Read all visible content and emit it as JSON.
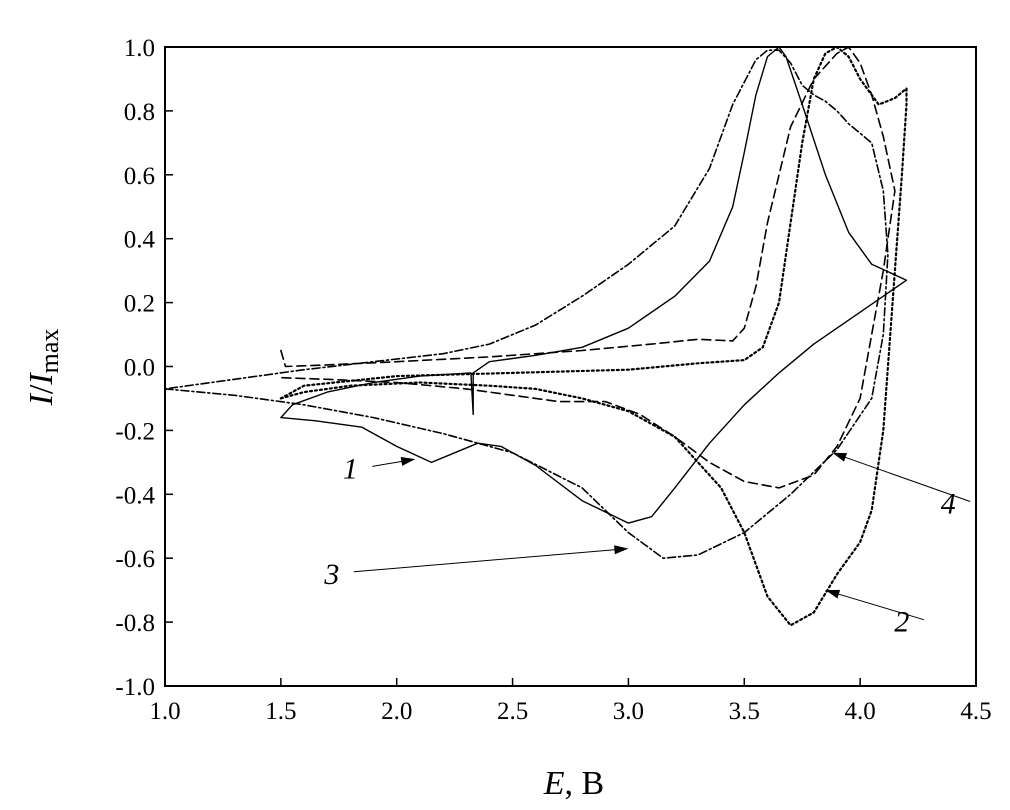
{
  "chart_data": {
    "type": "line",
    "xlabel": {
      "var": "E",
      "unit": ", B"
    },
    "ylabel": {
      "var1": "I",
      "slash": "/",
      "var2": "I",
      "sub": "max"
    },
    "xlim": [
      1.0,
      4.5
    ],
    "ylim": [
      -1.0,
      1.0
    ],
    "x_ticks": [
      "1.0",
      "1.5",
      "2.0",
      "2.5",
      "3.0",
      "3.5",
      "4.0",
      "4.5"
    ],
    "y_ticks": [
      "-1.0",
      "-0.8",
      "-0.6",
      "-0.4",
      "-0.2",
      "0.0",
      "0.2",
      "0.4",
      "0.6",
      "0.8",
      "1.0"
    ],
    "grid": false,
    "legend": "none",
    "series": [
      {
        "name": "1",
        "style": "solid",
        "points": [
          [
            1.5,
            -0.16
          ],
          [
            1.65,
            -0.17
          ],
          [
            1.85,
            -0.19
          ],
          [
            2.0,
            -0.25
          ],
          [
            2.15,
            -0.3
          ],
          [
            2.25,
            -0.27
          ],
          [
            2.35,
            -0.24
          ],
          [
            2.45,
            -0.25
          ],
          [
            2.6,
            -0.31
          ],
          [
            2.8,
            -0.42
          ],
          [
            3.0,
            -0.49
          ],
          [
            3.1,
            -0.47
          ],
          [
            3.2,
            -0.38
          ],
          [
            3.35,
            -0.24
          ],
          [
            3.5,
            -0.12
          ],
          [
            3.65,
            -0.02
          ],
          [
            3.8,
            0.07
          ],
          [
            4.0,
            0.17
          ],
          [
            4.2,
            0.27
          ],
          [
            4.05,
            0.32
          ],
          [
            3.95,
            0.42
          ],
          [
            3.85,
            0.6
          ],
          [
            3.75,
            0.82
          ],
          [
            3.68,
            0.97
          ],
          [
            3.65,
            1.0
          ],
          [
            3.6,
            0.97
          ],
          [
            3.55,
            0.85
          ],
          [
            3.5,
            0.67
          ],
          [
            3.45,
            0.5
          ],
          [
            3.35,
            0.33
          ],
          [
            3.2,
            0.22
          ],
          [
            3.0,
            0.12
          ],
          [
            2.8,
            0.06
          ],
          [
            2.6,
            0.035
          ],
          [
            2.45,
            0.02
          ],
          [
            2.4,
            0.015
          ],
          [
            2.33,
            -0.02
          ],
          [
            2.33,
            -0.15
          ],
          [
            2.32,
            -0.02
          ],
          [
            2.1,
            -0.03
          ],
          [
            1.9,
            -0.05
          ],
          [
            1.7,
            -0.08
          ],
          [
            1.55,
            -0.12
          ],
          [
            1.5,
            -0.16
          ]
        ]
      },
      {
        "name": "2",
        "style": "dotted",
        "points": [
          [
            1.5,
            -0.1
          ],
          [
            1.6,
            -0.08
          ],
          [
            1.8,
            -0.06
          ],
          [
            2.1,
            -0.05
          ],
          [
            2.4,
            -0.06
          ],
          [
            2.6,
            -0.07
          ],
          [
            2.8,
            -0.1
          ],
          [
            3.0,
            -0.14
          ],
          [
            3.2,
            -0.22
          ],
          [
            3.4,
            -0.38
          ],
          [
            3.5,
            -0.52
          ],
          [
            3.6,
            -0.72
          ],
          [
            3.7,
            -0.81
          ],
          [
            3.8,
            -0.77
          ],
          [
            3.9,
            -0.65
          ],
          [
            4.0,
            -0.55
          ],
          [
            4.05,
            -0.45
          ],
          [
            4.1,
            -0.2
          ],
          [
            4.15,
            0.3
          ],
          [
            4.18,
            0.6
          ],
          [
            4.2,
            0.82
          ],
          [
            4.2,
            0.87
          ],
          [
            4.15,
            0.84
          ],
          [
            4.08,
            0.82
          ],
          [
            4.0,
            0.9
          ],
          [
            3.95,
            0.97
          ],
          [
            3.9,
            1.0
          ],
          [
            3.85,
            0.98
          ],
          [
            3.8,
            0.9
          ],
          [
            3.75,
            0.7
          ],
          [
            3.7,
            0.45
          ],
          [
            3.65,
            0.2
          ],
          [
            3.58,
            0.06
          ],
          [
            3.5,
            0.02
          ],
          [
            3.3,
            0.01
          ],
          [
            3.0,
            -0.01
          ],
          [
            2.5,
            -0.02
          ],
          [
            2.0,
            -0.03
          ],
          [
            1.6,
            -0.06
          ],
          [
            1.5,
            -0.1
          ]
        ]
      },
      {
        "name": "3",
        "style": "dash-dot",
        "points": [
          [
            1.0,
            -0.07
          ],
          [
            1.3,
            -0.09
          ],
          [
            1.6,
            -0.12
          ],
          [
            1.9,
            -0.16
          ],
          [
            2.2,
            -0.21
          ],
          [
            2.5,
            -0.27
          ],
          [
            2.8,
            -0.38
          ],
          [
            3.0,
            -0.52
          ],
          [
            3.15,
            -0.6
          ],
          [
            3.3,
            -0.59
          ],
          [
            3.5,
            -0.52
          ],
          [
            3.7,
            -0.4
          ],
          [
            3.9,
            -0.26
          ],
          [
            4.05,
            -0.1
          ],
          [
            4.1,
            0.1
          ],
          [
            4.12,
            0.35
          ],
          [
            4.1,
            0.55
          ],
          [
            4.05,
            0.7
          ],
          [
            3.95,
            0.76
          ],
          [
            3.9,
            0.8
          ],
          [
            3.85,
            0.83
          ],
          [
            3.8,
            0.85
          ],
          [
            3.75,
            0.88
          ],
          [
            3.7,
            0.95
          ],
          [
            3.65,
            0.99
          ],
          [
            3.6,
            0.99
          ],
          [
            3.55,
            0.96
          ],
          [
            3.45,
            0.82
          ],
          [
            3.35,
            0.62
          ],
          [
            3.2,
            0.44
          ],
          [
            3.0,
            0.32
          ],
          [
            2.8,
            0.22
          ],
          [
            2.6,
            0.13
          ],
          [
            2.4,
            0.07
          ],
          [
            2.2,
            0.04
          ],
          [
            1.9,
            0.015
          ],
          [
            1.6,
            -0.01
          ],
          [
            1.3,
            -0.04
          ],
          [
            1.0,
            -0.07
          ]
        ]
      },
      {
        "name": "4",
        "style": "dashed",
        "points": [
          [
            1.5,
            0.05
          ],
          [
            1.52,
            0.0
          ],
          [
            1.7,
            0.005
          ],
          [
            2.0,
            0.015
          ],
          [
            2.4,
            0.03
          ],
          [
            2.8,
            0.05
          ],
          [
            3.1,
            0.07
          ],
          [
            3.3,
            0.085
          ],
          [
            3.45,
            0.08
          ],
          [
            3.5,
            0.12
          ],
          [
            3.55,
            0.25
          ],
          [
            3.6,
            0.45
          ],
          [
            3.7,
            0.75
          ],
          [
            3.8,
            0.9
          ],
          [
            3.9,
            0.98
          ],
          [
            3.95,
            1.0
          ],
          [
            4.0,
            0.95
          ],
          [
            4.05,
            0.85
          ],
          [
            4.1,
            0.72
          ],
          [
            4.15,
            0.55
          ],
          [
            4.1,
            0.3
          ],
          [
            4.05,
            0.1
          ],
          [
            4.0,
            -0.1
          ],
          [
            3.9,
            -0.25
          ],
          [
            3.8,
            -0.34
          ],
          [
            3.65,
            -0.38
          ],
          [
            3.5,
            -0.36
          ],
          [
            3.35,
            -0.3
          ],
          [
            3.2,
            -0.22
          ],
          [
            3.05,
            -0.15
          ],
          [
            2.9,
            -0.11
          ],
          [
            2.7,
            -0.11
          ],
          [
            2.5,
            -0.09
          ],
          [
            2.3,
            -0.07
          ],
          [
            2.0,
            -0.05
          ],
          [
            1.7,
            -0.04
          ],
          [
            1.5,
            -0.035
          ]
        ]
      }
    ],
    "annotations": [
      {
        "text": "1",
        "at": [
          1.8,
          -0.35
        ],
        "arrow_to": [
          2.08,
          -0.29
        ]
      },
      {
        "text": "2",
        "at": [
          4.18,
          -0.83
        ],
        "arrow_to": [
          3.85,
          -0.7
        ]
      },
      {
        "text": "3",
        "at": [
          1.72,
          -0.68
        ],
        "arrow_to": [
          3.0,
          -0.57
        ]
      },
      {
        "text": "4",
        "at": [
          4.38,
          -0.46
        ],
        "arrow_to": [
          3.88,
          -0.27
        ]
      }
    ]
  }
}
